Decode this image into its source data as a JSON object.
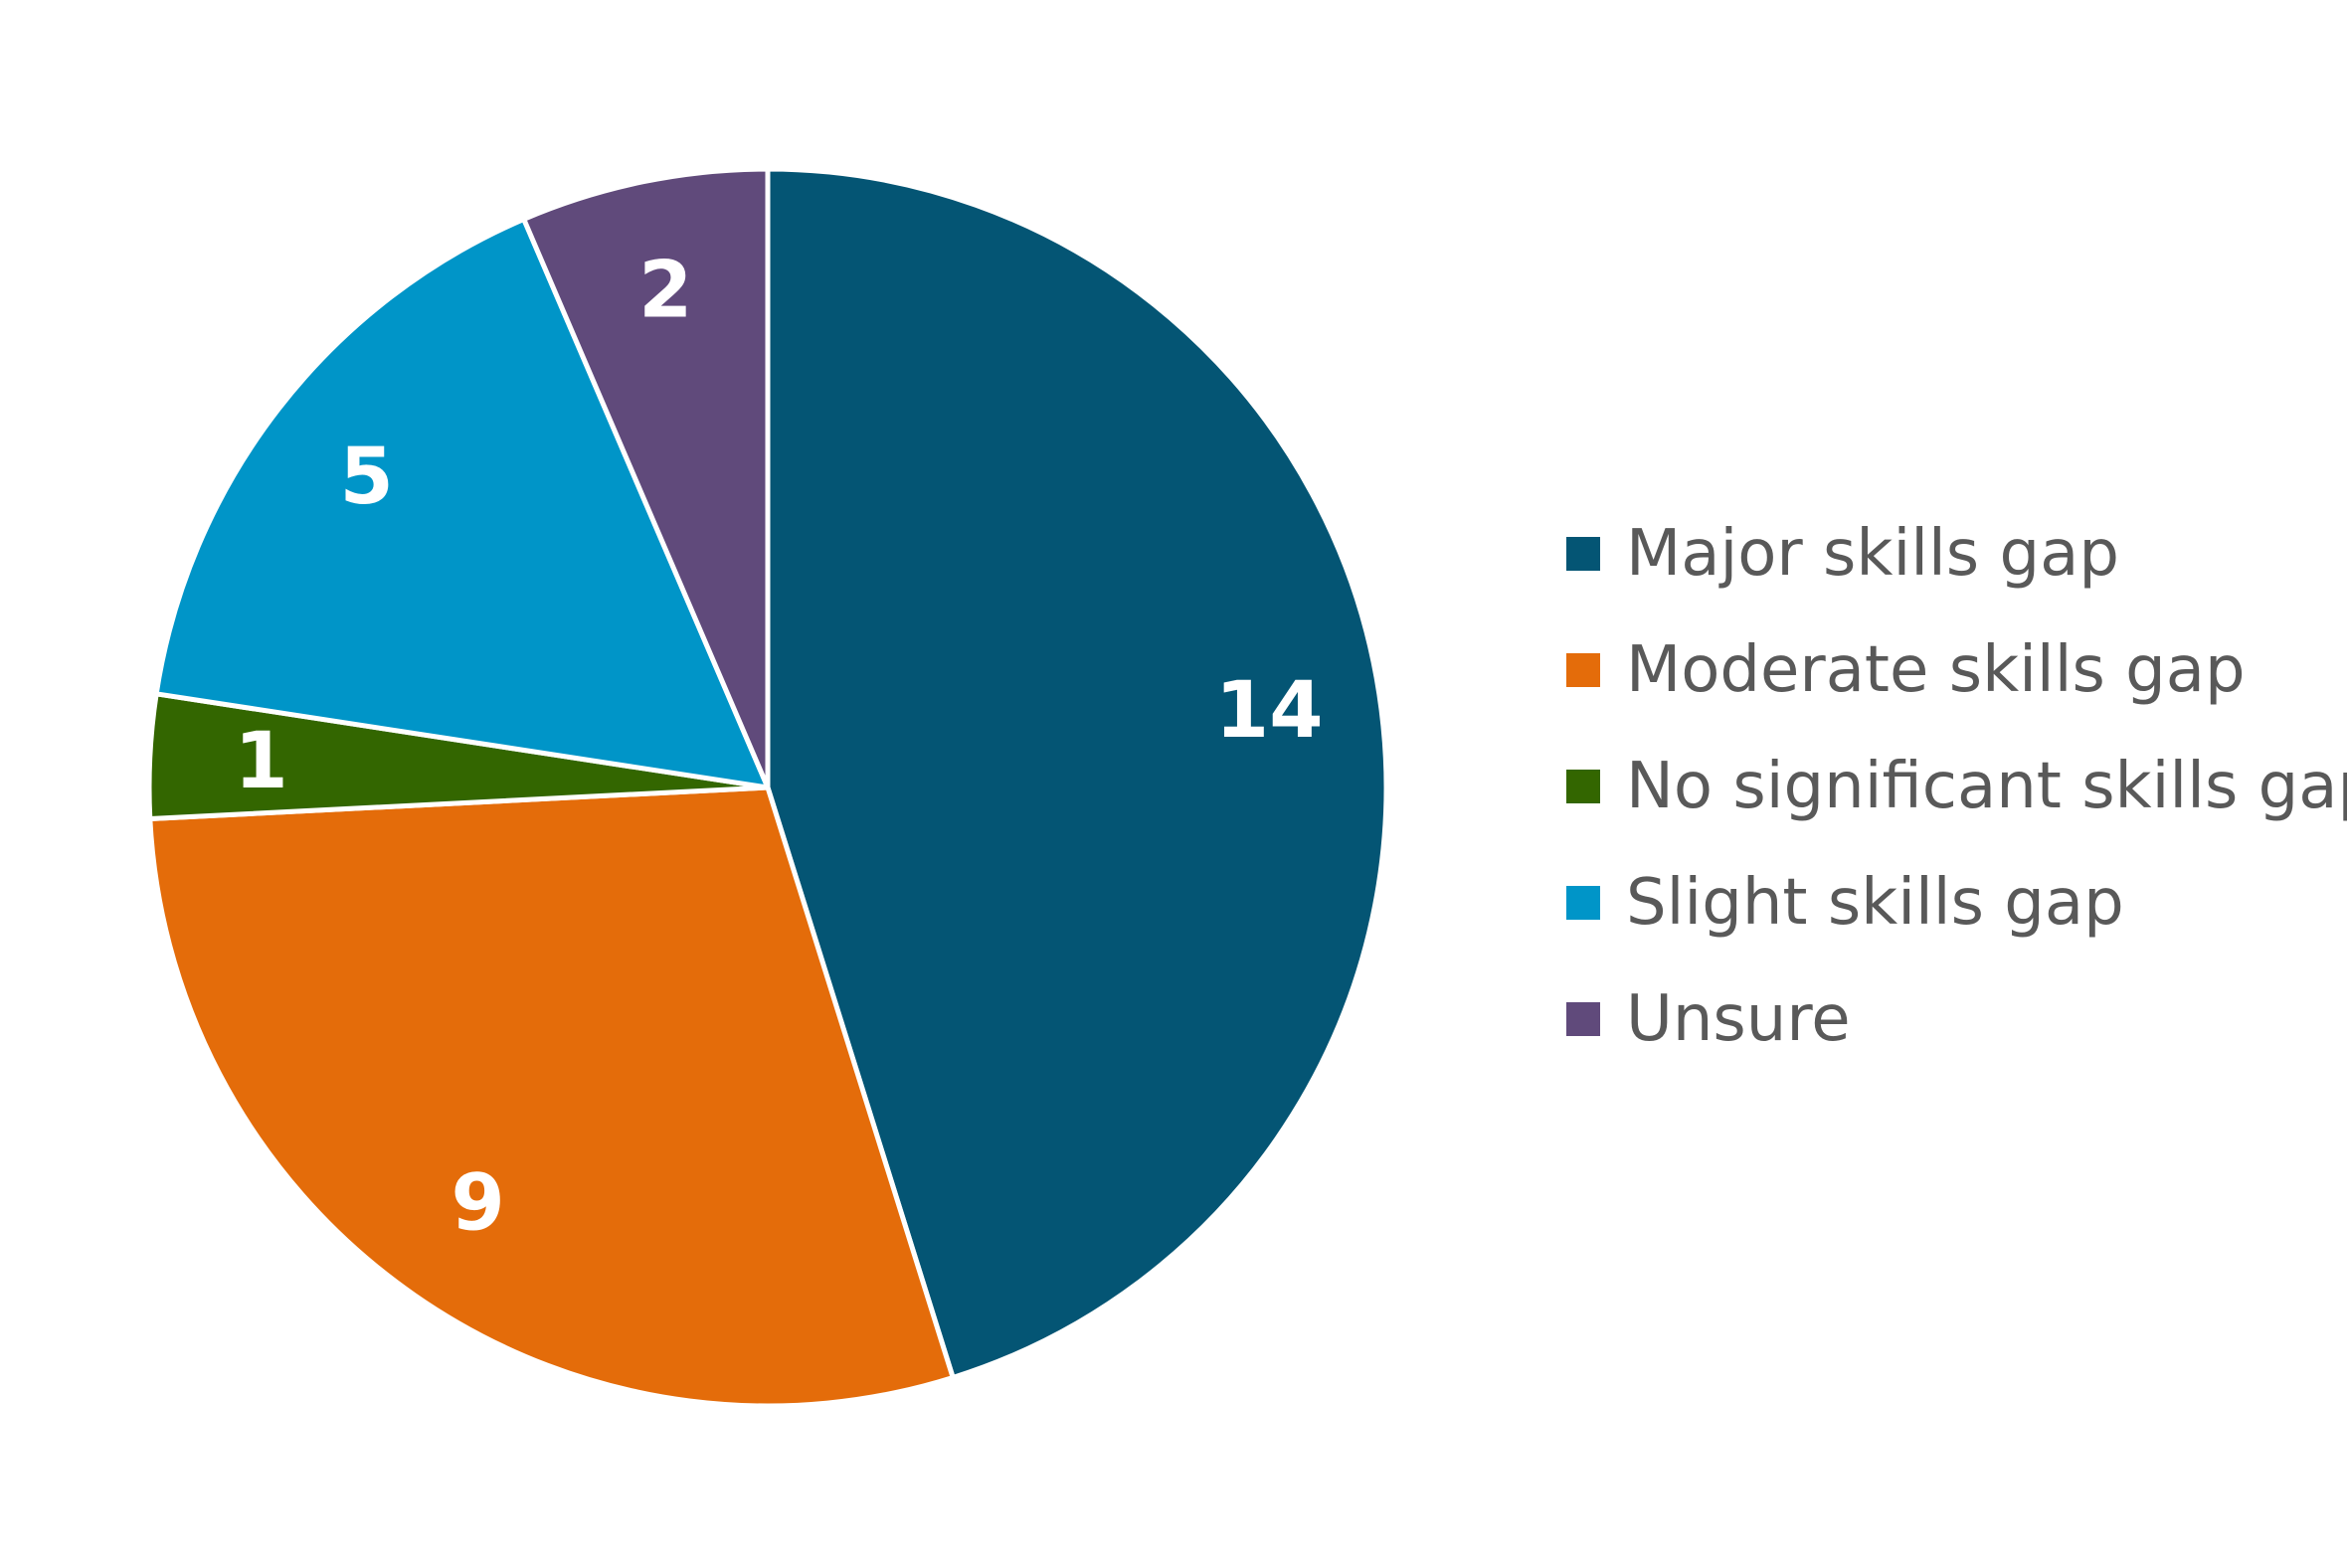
{
  "chart_data": {
    "type": "pie",
    "title": "",
    "categories": [
      "Major skills gap",
      "Moderate skills gap",
      "No significant skills gap",
      "Slight skills gap",
      "Unsure"
    ],
    "values": [
      14,
      9,
      1,
      5,
      2
    ],
    "colors": [
      "#045574",
      "#E46C0A",
      "#336600",
      "#0095C8",
      "#604A7B"
    ],
    "label_color": "#FFFFFF",
    "data_labels": true,
    "legend_position": "right",
    "start_angle": "12 o'clock",
    "direction": "clockwise"
  }
}
